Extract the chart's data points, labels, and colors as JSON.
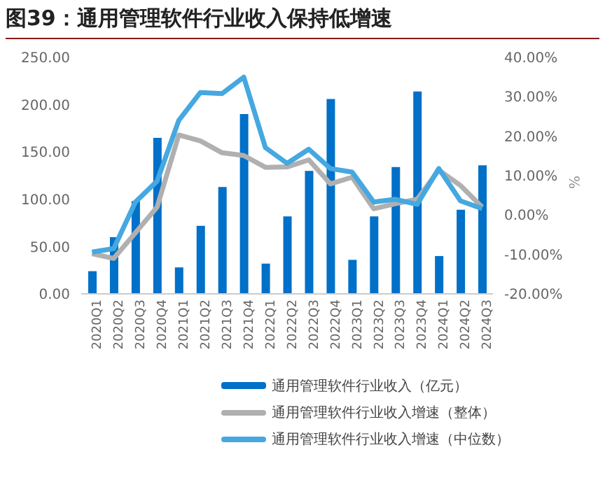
{
  "chart_data": {
    "type": "bar",
    "title": "图39：通用管理软件行业收入保持低增速",
    "categories": [
      "2020Q1",
      "2020Q2",
      "2020Q3",
      "2020Q4",
      "2021Q1",
      "2021Q2",
      "2021Q3",
      "2021Q4",
      "2022Q1",
      "2022Q2",
      "2022Q3",
      "2022Q4",
      "2023Q1",
      "2023Q2",
      "2023Q3",
      "2023Q4",
      "2024Q1",
      "2024Q2",
      "2024Q3"
    ],
    "series": [
      {
        "name": "通用管理软件行业收入（亿元）",
        "color": "#0070c8",
        "values": [
          24,
          60,
          98,
          165,
          28,
          72,
          113,
          190,
          32,
          82,
          130,
          206,
          36,
          82,
          134,
          214,
          40,
          89,
          136
        ]
      },
      {
        "name": "通用管理软件行业收入增速（整体）",
        "type": "line",
        "axis": "y2",
        "color": "#b0b0b0",
        "values": [
          -9.8,
          -11,
          -4.5,
          2,
          20.3,
          18.8,
          15.8,
          15.1,
          12.1,
          12.2,
          14,
          7.9,
          9.6,
          1.6,
          2.9,
          4,
          11.4,
          7.5,
          2
        ]
      },
      {
        "name": "通用管理软件行业收入增速（中位数）",
        "type": "line",
        "axis": "y2",
        "color": "#45a8e0",
        "values": [
          -9.4,
          -8.5,
          3.3,
          8.6,
          24,
          31.1,
          30.8,
          35,
          17.1,
          13.1,
          16.7,
          11.8,
          10.9,
          3.3,
          4,
          2.7,
          11.8,
          3.6,
          1.6
        ]
      }
    ],
    "ylim": [
      0,
      250
    ],
    "yticks": [
      {
        "value": 0,
        "label": "0.00"
      },
      {
        "value": 50,
        "label": "50.00"
      },
      {
        "value": 100,
        "label": "100.00"
      },
      {
        "value": 150,
        "label": "150.00"
      },
      {
        "value": 200,
        "label": "200.00"
      },
      {
        "value": 250,
        "label": "250.00"
      }
    ],
    "y2lim": [
      -20,
      40
    ],
    "y2ticks": [
      {
        "value": -20,
        "label": "-20.00%"
      },
      {
        "value": -10,
        "label": "-10.00%"
      },
      {
        "value": 0,
        "label": "0.00%"
      },
      {
        "value": 10,
        "label": "10.00%"
      },
      {
        "value": 20,
        "label": "20.00%"
      },
      {
        "value": 30,
        "label": "30.00%"
      },
      {
        "value": 40,
        "label": "40.00%"
      }
    ],
    "y2label": "%",
    "grid": false,
    "legend": "bottom",
    "marker": "none",
    "line_style": "solid"
  }
}
